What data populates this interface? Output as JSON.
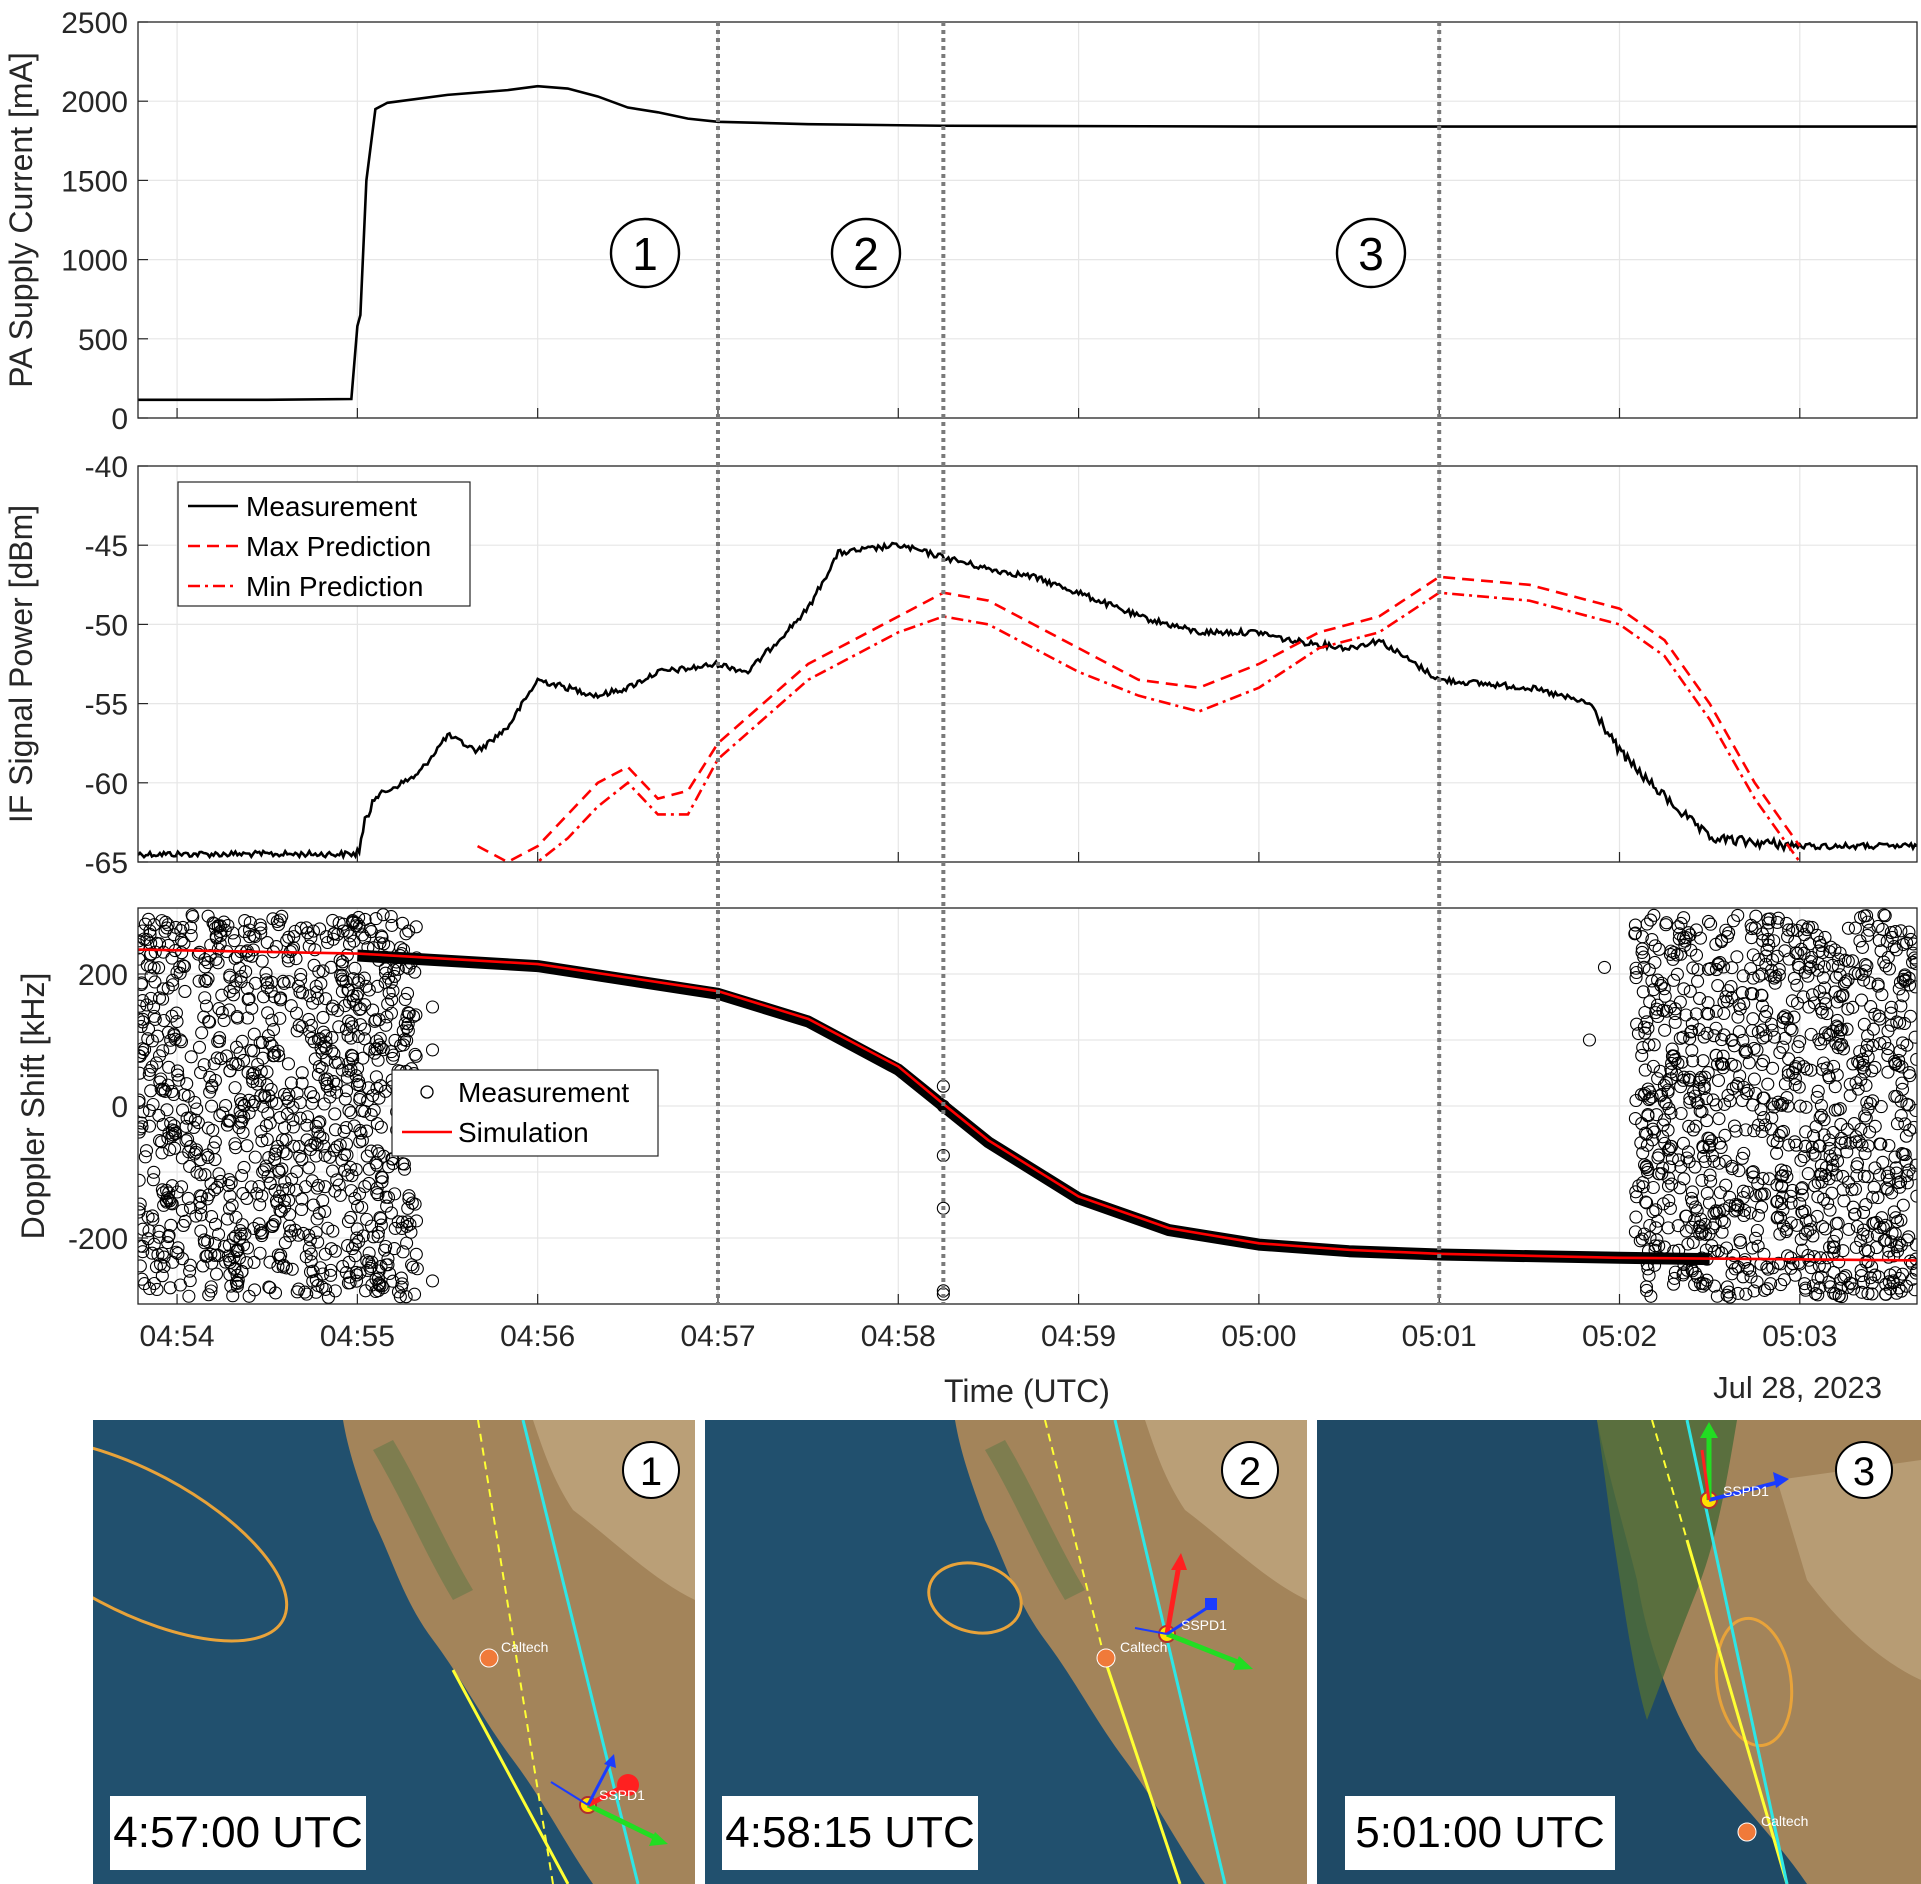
{
  "figure": {
    "date_label": "Jul 28, 2023",
    "event_markers": [
      {
        "label": "1",
        "time": "04:57:00"
      },
      {
        "label": "2",
        "time": "04:58:15"
      },
      {
        "label": "3",
        "time": "05:01:00"
      }
    ]
  },
  "chart_data": [
    {
      "type": "line",
      "ylabel": "PA Supply Current [mA]",
      "xlabel": "",
      "xlim": [
        "04:53:47",
        "05:03:39"
      ],
      "ylim": [
        0,
        2500
      ],
      "yticks": [
        0,
        500,
        1000,
        1500,
        2000,
        2500
      ],
      "grid": true,
      "series": [
        {
          "color": "#000000",
          "style": "solid",
          "x": [
            "04:53:47",
            "04:54:30",
            "04:54:58",
            "04:55:00",
            "04:55:01",
            "04:55:03",
            "04:55:06",
            "04:55:10",
            "04:55:30",
            "04:55:50",
            "04:56:00",
            "04:56:10",
            "04:56:20",
            "04:56:30",
            "04:56:40",
            "04:56:50",
            "04:57:00",
            "04:57:30",
            "04:58:15",
            "05:00:00",
            "05:01:00",
            "05:02:00",
            "05:03:39"
          ],
          "y": [
            115,
            115,
            120,
            580,
            650,
            1500,
            1950,
            1990,
            2040,
            2070,
            2095,
            2080,
            2030,
            1960,
            1930,
            1890,
            1870,
            1855,
            1845,
            1840,
            1840,
            1840,
            1840
          ]
        }
      ]
    },
    {
      "type": "line",
      "ylabel": "IF Signal Power [dBm]",
      "xlabel": "",
      "xlim": [
        "04:53:47",
        "05:03:39"
      ],
      "ylim": [
        -65,
        -40
      ],
      "yticks": [
        -65,
        -60,
        -55,
        -50,
        -45,
        -40
      ],
      "grid": true,
      "legend": "top-left",
      "series": [
        {
          "name": "Measurement",
          "color": "#000000",
          "style": "solid",
          "x": [
            "04:53:47",
            "04:54:30",
            "04:55:00",
            "04:55:05",
            "04:55:10",
            "04:55:20",
            "04:55:30",
            "04:55:40",
            "04:55:50",
            "04:56:00",
            "04:56:20",
            "04:56:30",
            "04:56:40",
            "04:56:50",
            "04:57:00",
            "04:57:10",
            "04:57:30",
            "04:57:40",
            "04:58:00",
            "04:58:10",
            "04:58:20",
            "04:58:30",
            "04:58:45",
            "04:59:00",
            "04:59:20",
            "04:59:40",
            "05:00:00",
            "05:00:10",
            "05:00:30",
            "05:00:40",
            "05:01:00",
            "05:01:30",
            "05:01:50",
            "05:02:00",
            "05:02:10",
            "05:02:30",
            "05:03:00",
            "05:03:39"
          ],
          "y": [
            -64.5,
            -64.5,
            -64.5,
            -61,
            -60.5,
            -59.5,
            -57,
            -58,
            -56.5,
            -53.5,
            -54.5,
            -54,
            -53,
            -52.8,
            -52.5,
            -53,
            -49,
            -45.5,
            -45,
            -45.5,
            -46,
            -46.5,
            -47,
            -48,
            -49.5,
            -50.5,
            -50.5,
            -51,
            -51.5,
            -51,
            -53.5,
            -54,
            -55,
            -58,
            -60,
            -63.5,
            -64,
            -64
          ]
        },
        {
          "name": "Max Prediction",
          "color": "#ff0000",
          "style": "dashed",
          "x": [
            "04:55:40",
            "04:55:50",
            "04:56:00",
            "04:56:10",
            "04:56:20",
            "04:56:30",
            "04:56:40",
            "04:56:50",
            "04:57:00",
            "04:57:30",
            "04:58:00",
            "04:58:15",
            "04:58:30",
            "04:58:45",
            "04:59:00",
            "04:59:20",
            "04:59:40",
            "05:00:00",
            "05:00:20",
            "05:00:40",
            "05:01:00",
            "05:01:30",
            "05:02:00",
            "05:02:15",
            "05:02:30",
            "05:02:45",
            "05:03:00"
          ],
          "y": [
            -64,
            -65,
            -64,
            -62,
            -60,
            -59,
            -61,
            -60.5,
            -57.5,
            -52.5,
            -49.5,
            -48,
            -48.5,
            -50,
            -51.5,
            -53.5,
            -54,
            -52.5,
            -50.5,
            -49.5,
            -47,
            -47.5,
            -49,
            -51,
            -55,
            -60,
            -64
          ]
        },
        {
          "name": "Min Prediction",
          "color": "#ff0000",
          "style": "dashdot",
          "x": [
            "04:55:40",
            "04:55:50",
            "04:56:00",
            "04:56:10",
            "04:56:20",
            "04:56:30",
            "04:56:40",
            "04:56:50",
            "04:57:00",
            "04:57:30",
            "04:58:00",
            "04:58:15",
            "04:58:30",
            "04:58:45",
            "04:59:00",
            "04:59:20",
            "04:59:40",
            "05:00:00",
            "05:00:20",
            "05:00:40",
            "05:01:00",
            "05:01:30",
            "05:02:00",
            "05:02:15",
            "05:02:30",
            "05:02:45",
            "05:03:00"
          ],
          "y": [
            -65.5,
            -66,
            -65,
            -63.5,
            -61.5,
            -60,
            -62,
            -62,
            -58.5,
            -53.5,
            -50.5,
            -49.5,
            -50,
            -51.5,
            -53,
            -54.5,
            -55.5,
            -54,
            -51.5,
            -50.5,
            -48,
            -48.5,
            -50,
            -52,
            -56,
            -61,
            -65
          ]
        }
      ]
    },
    {
      "type": "scatter",
      "ylabel": "Doppler Shift [kHz]",
      "xlabel": "Time (UTC)",
      "xlim": [
        "04:53:47",
        "05:03:39"
      ],
      "ylim": [
        -300,
        300
      ],
      "yticks": [
        -200,
        0,
        200
      ],
      "xticks": [
        "04:54",
        "04:55",
        "04:56",
        "04:57",
        "04:58",
        "04:59",
        "05:00",
        "05:01",
        "05:02",
        "05:03"
      ],
      "grid": true,
      "legend": "center-left",
      "series": [
        {
          "name": "Measurement",
          "color": "#000000",
          "marker": "circle-open",
          "noise_regions": [
            {
              "x_range": [
                "04:53:47",
                "04:55:20"
              ],
              "y_range": [
                -290,
                290
              ],
              "count": 1100
            },
            {
              "x_range": [
                "05:02:05",
                "05:03:39"
              ],
              "y_range": [
                -290,
                290
              ],
              "count": 1100
            }
          ],
          "sparse_points": {
            "x": [
              "04:55:25",
              "04:55:25",
              "04:55:25",
              "04:58:15",
              "04:58:15",
              "04:58:15",
              "04:58:15",
              "04:58:15",
              "04:58:15",
              "05:01:50",
              "05:01:55"
            ],
            "y": [
              150,
              85,
              -265,
              30,
              0,
              -75,
              -155,
              -280,
              -285,
              100,
              210
            ]
          },
          "track": {
            "x": [
              "04:55:00",
              "04:56:00",
              "04:57:00",
              "04:57:30",
              "04:58:00",
              "04:58:15",
              "04:58:30",
              "04:59:00",
              "04:59:30",
              "05:00:00",
              "05:00:30",
              "05:01:00",
              "05:02:00",
              "05:02:30"
            ],
            "y": [
              228,
              212,
              170,
              128,
              55,
              0,
              -55,
              -140,
              -188,
              -210,
              -220,
              -225,
              -230,
              -232
            ]
          }
        },
        {
          "name": "Simulation",
          "color": "#ff0000",
          "style": "solid",
          "x": [
            "04:53:47",
            "04:55:00",
            "04:56:00",
            "04:57:00",
            "04:57:30",
            "04:58:00",
            "04:58:15",
            "04:58:30",
            "04:59:00",
            "04:59:30",
            "05:00:00",
            "05:00:30",
            "05:01:00",
            "05:02:00",
            "05:03:39"
          ],
          "y": [
            237,
            231,
            215,
            174,
            132,
            60,
            3,
            -52,
            -137,
            -185,
            -208,
            -218,
            -224,
            -230,
            -234
          ]
        }
      ]
    }
  ],
  "maps": [
    {
      "marker": "1",
      "time_label": "4:57:00 UTC",
      "ground_station": "Caltech",
      "satellite": "SSPD1"
    },
    {
      "marker": "2",
      "time_label": "4:58:15 UTC",
      "ground_station": "Caltech",
      "satellite": "SSPD1"
    },
    {
      "marker": "3",
      "time_label": "5:01:00 UTC",
      "ground_station": "Caltech",
      "satellite": "SSPD1"
    }
  ]
}
